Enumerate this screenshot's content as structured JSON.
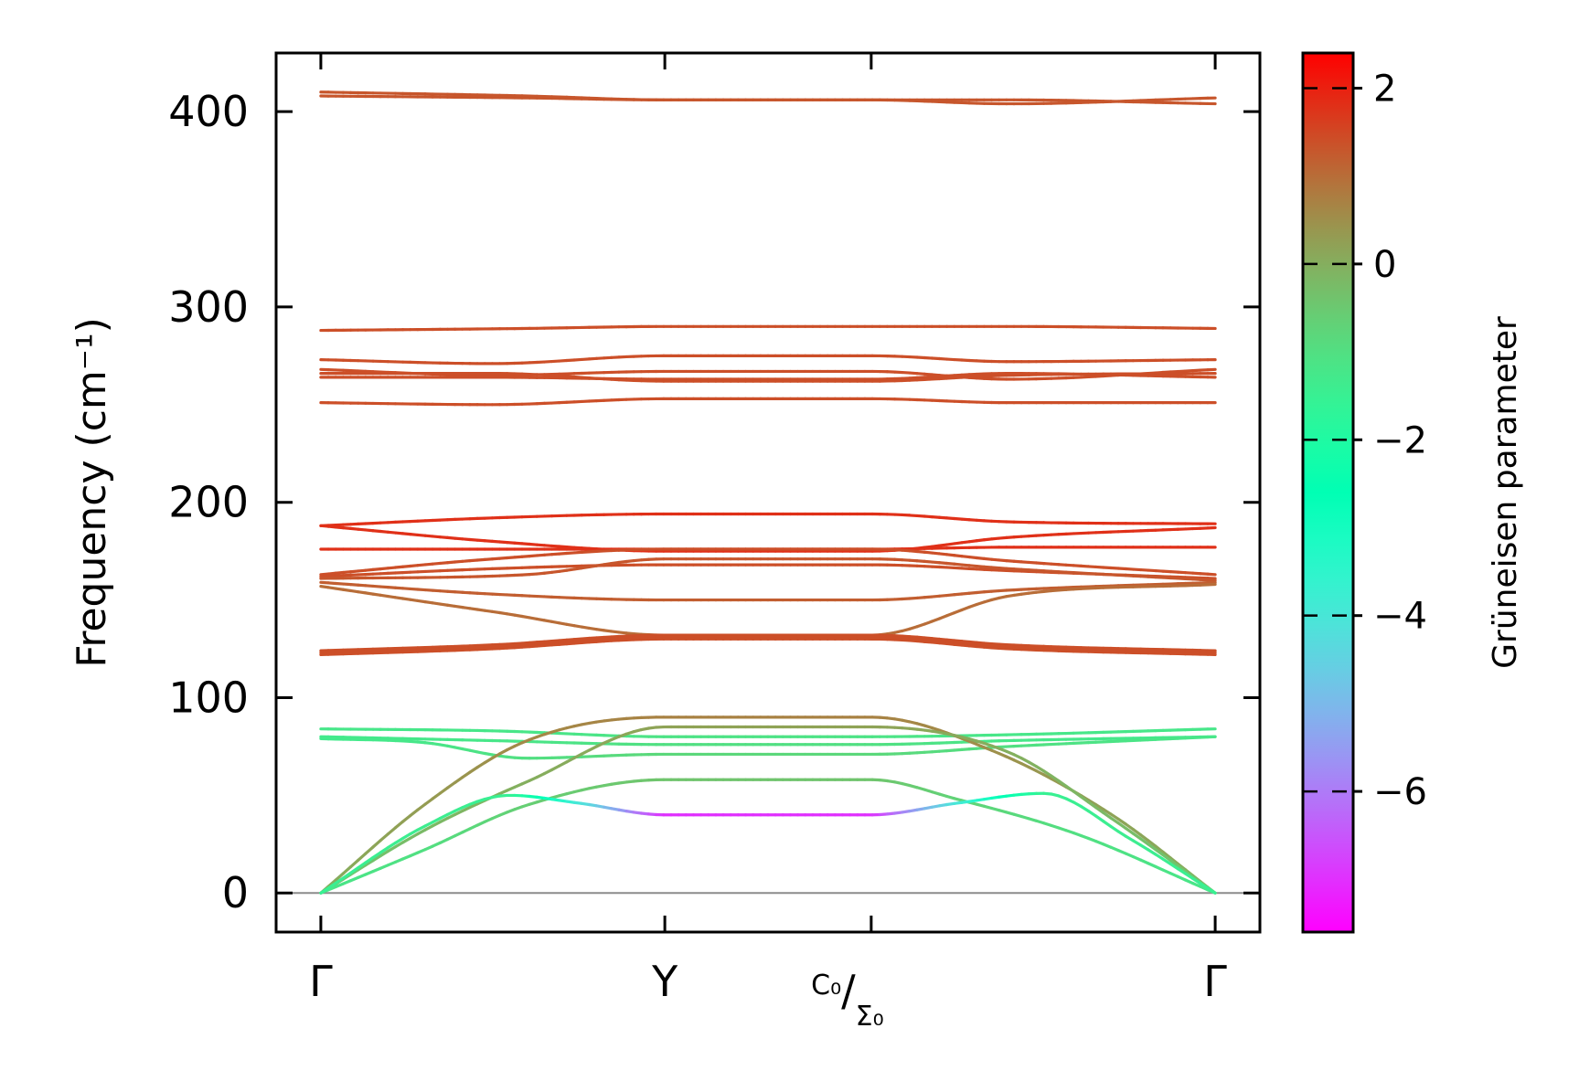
{
  "chart_data": {
    "type": "line",
    "chart_subtype": "phonon band structure colored by Grüneisen parameter",
    "ylabel": "Frequency (cm⁻¹)",
    "colorbar_label": "Grüneisen parameter",
    "ylim": [
      -20,
      430
    ],
    "y_ticks": [
      0,
      100,
      200,
      300,
      400
    ],
    "colorbar_range": [
      -7.6,
      2.4
    ],
    "colorbar_ticks": [
      2,
      0,
      -2,
      -4,
      -6
    ],
    "colorbar_tick_labels": [
      "2",
      "0",
      "−2",
      "−4",
      "−6"
    ],
    "colormap": "rainbow",
    "x_labels": [
      {
        "pos": 0,
        "label": "Γ"
      },
      {
        "pos": 1,
        "label": "Y"
      },
      {
        "pos": 1.6,
        "label": "C₀/Σ₀",
        "main": "C₀",
        "sub": "Σ₀"
      },
      {
        "pos": 2.6,
        "label": "Γ"
      }
    ],
    "x_range": [
      -0.13,
      2.73
    ],
    "zero_line": true,
    "branches": [
      {
        "x": [
          0,
          0.6,
          1.0,
          1.6,
          2.0,
          2.6
        ],
        "y": [
          408,
          407,
          406,
          406,
          404,
          407
        ],
        "g": [
          1.3
        ]
      },
      {
        "x": [
          0,
          0.6,
          1.0,
          1.6,
          2.0,
          2.6
        ],
        "y": [
          410,
          408,
          406,
          406,
          406,
          404
        ],
        "g": [
          1.3
        ]
      },
      {
        "x": [
          0,
          0.6,
          1.0,
          1.6,
          2.0,
          2.6
        ],
        "y": [
          288,
          289,
          290,
          290,
          290,
          289
        ],
        "g": [
          1.4
        ]
      },
      {
        "x": [
          0,
          0.5,
          1.0,
          1.6,
          2.0,
          2.6
        ],
        "y": [
          273,
          271,
          275,
          275,
          272,
          273
        ],
        "g": [
          1.4
        ]
      },
      {
        "x": [
          0,
          0.5,
          1.0,
          1.6,
          2.0,
          2.6
        ],
        "y": [
          268,
          265,
          267,
          267,
          263,
          268
        ],
        "g": [
          1.4
        ]
      },
      {
        "x": [
          0,
          0.5,
          1.0,
          1.6,
          2.0,
          2.6
        ],
        "y": [
          266,
          266,
          262,
          262,
          265,
          266
        ],
        "g": [
          1.4
        ]
      },
      {
        "x": [
          0,
          0.5,
          1.0,
          1.6,
          2.0,
          2.6
        ],
        "y": [
          264,
          264,
          263,
          263,
          266,
          264
        ],
        "g": [
          1.4
        ]
      },
      {
        "x": [
          0,
          0.5,
          1.0,
          1.6,
          2.0,
          2.6
        ],
        "y": [
          251,
          250,
          253,
          253,
          251,
          251
        ],
        "g": [
          1.4
        ]
      },
      {
        "x": [
          0,
          0.5,
          1.0,
          1.6,
          2.0,
          2.6
        ],
        "y": [
          188,
          192,
          194,
          194,
          190,
          189
        ],
        "g": [
          1.8
        ]
      },
      {
        "x": [
          0,
          0.5,
          1.0,
          1.6,
          2.0,
          2.6
        ],
        "y": [
          188,
          180,
          175,
          175,
          182,
          187
        ],
        "g": [
          1.8
        ]
      },
      {
        "x": [
          0,
          0.6,
          1.0,
          1.6,
          2.0,
          2.6
        ],
        "y": [
          176,
          176,
          176,
          176,
          177,
          177
        ],
        "g": [
          1.8
        ]
      },
      {
        "x": [
          0,
          0.5,
          1.0,
          1.6,
          2.0,
          2.6
        ],
        "y": [
          163,
          171,
          176,
          176,
          170,
          163
        ],
        "g": [
          1.4
        ]
      },
      {
        "x": [
          0,
          0.5,
          1.0,
          1.6,
          2.0,
          2.6
        ],
        "y": [
          162,
          166,
          168,
          168,
          165,
          161
        ],
        "g": [
          1.4
        ]
      },
      {
        "x": [
          0,
          0.6,
          1.0,
          1.6,
          2.0,
          2.6
        ],
        "y": [
          161,
          163,
          171,
          171,
          166,
          160
        ],
        "g": [
          1.3
        ]
      },
      {
        "x": [
          0,
          0.5,
          1.0,
          1.6,
          2.0,
          2.6
        ],
        "y": [
          159,
          153,
          150,
          150,
          155,
          159
        ],
        "g": [
          1.2
        ]
      },
      {
        "x": [
          0,
          0.5,
          1.0,
          1.6,
          2.0,
          2.6
        ],
        "y": [
          157,
          144,
          132,
          132,
          152,
          158
        ],
        "g": [
          1.0
        ]
      },
      {
        "x": [
          0,
          0.5,
          1.0,
          1.6,
          2.0,
          2.6
        ],
        "y": [
          124,
          127,
          132,
          132,
          127,
          124
        ],
        "g": [
          1.4
        ]
      },
      {
        "x": [
          0,
          0.5,
          1.0,
          1.6,
          2.0,
          2.6
        ],
        "y": [
          123,
          126,
          131,
          131,
          126,
          123
        ],
        "g": [
          1.4
        ]
      },
      {
        "x": [
          0,
          0.5,
          1.0,
          1.6,
          2.0,
          2.6
        ],
        "y": [
          122,
          125,
          130,
          130,
          125,
          122
        ],
        "g": [
          1.4
        ]
      },
      {
        "x": [
          0,
          0.5,
          1.0,
          1.6,
          2.0,
          2.6
        ],
        "y": [
          84,
          83,
          80,
          80,
          81,
          84
        ],
        "g": [
          -1.2,
          -1.2,
          -1.1,
          -1.1,
          -1.2,
          -1.2
        ]
      },
      {
        "x": [
          0,
          0.5,
          1.0,
          1.6,
          2.0,
          2.6
        ],
        "y": [
          80,
          78,
          76,
          76,
          78,
          80
        ],
        "g": [
          -1.3,
          -1.2,
          -1.0,
          -1.0,
          -1.2,
          -1.3
        ]
      },
      {
        "x": [
          0,
          0.3,
          0.6,
          1.0,
          1.6,
          2.0,
          2.6
        ],
        "y": [
          79,
          77,
          69,
          71,
          71,
          75,
          80
        ],
        "g": [
          -1.3,
          -1.2,
          -1.0,
          -0.8,
          -0.8,
          -1.0,
          -1.2
        ]
      },
      {
        "x": [
          0,
          0.3,
          0.6,
          1.0,
          1.6,
          1.95,
          2.3,
          2.6
        ],
        "y": [
          0,
          45,
          78,
          90,
          90,
          73,
          40,
          0
        ],
        "g": [
          0.0,
          0.3,
          0.6,
          0.7,
          0.7,
          0.5,
          0.2,
          0.0
        ]
      },
      {
        "x": [
          0,
          0.3,
          0.6,
          1.0,
          1.6,
          2.0,
          2.3,
          2.6
        ],
        "y": [
          0,
          32,
          57,
          85,
          85,
          72,
          38,
          0
        ],
        "g": [
          -0.5,
          -0.2,
          0.0,
          0.2,
          0.2,
          0.0,
          -0.2,
          -0.5
        ]
      },
      {
        "x": [
          0,
          0.3,
          0.6,
          1.0,
          1.6,
          1.85,
          2.2,
          2.6
        ],
        "y": [
          0,
          22,
          45,
          58,
          58,
          48,
          30,
          0
        ],
        "g": [
          -1.2,
          -1.0,
          -0.6,
          -0.4,
          -0.4,
          -0.7,
          -1.0,
          -1.2
        ]
      },
      {
        "x": [
          0,
          0.3,
          0.55,
          0.75,
          1.0,
          1.6,
          1.85,
          2.1,
          2.35,
          2.6
        ],
        "y": [
          0,
          34,
          50,
          46,
          40,
          40,
          46,
          51,
          28,
          0
        ],
        "g": [
          -1.5,
          -1.4,
          -1.5,
          -4.0,
          -7.0,
          -7.0,
          -4.0,
          -1.5,
          -1.4,
          -1.5
        ]
      }
    ]
  }
}
